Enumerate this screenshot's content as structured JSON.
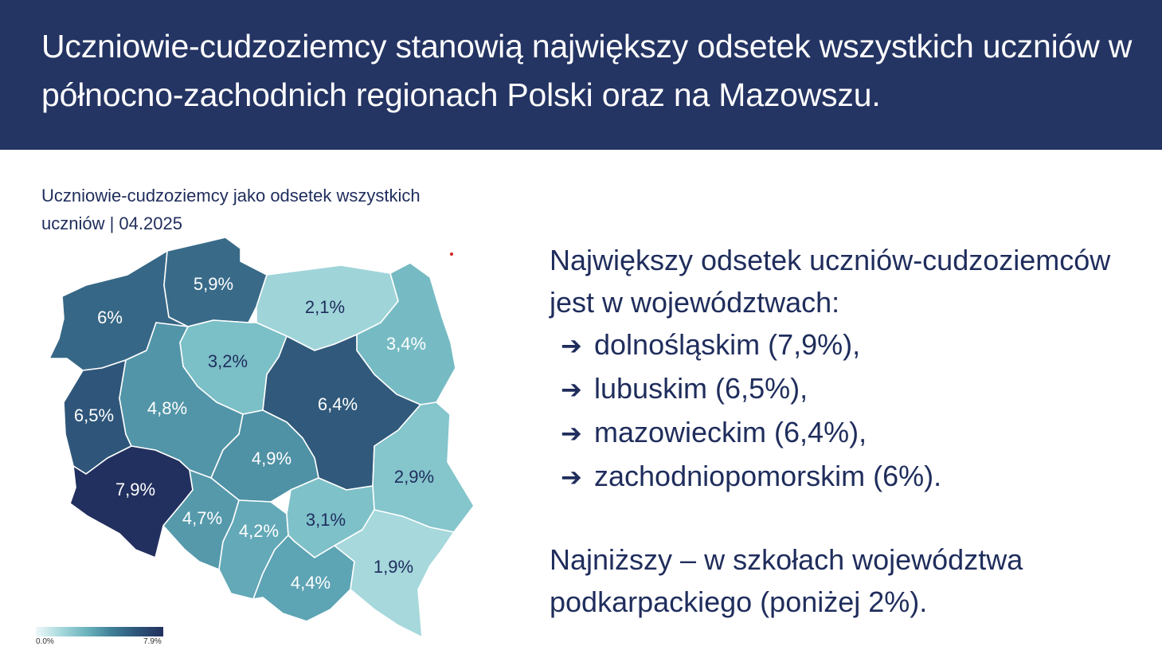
{
  "header": {
    "title": "Uczniowie-cudzoziemcy stanowią największy odsetek wszystkich uczniów w północno-zachodnich regionach Polski oraz na Mazowszu."
  },
  "map": {
    "title": "Uczniowie-cudzoziemcy jako odsetek wszystkich uczniów | 04.2025",
    "regions": [
      {
        "id": "zachodniopomorskie",
        "label": "6%",
        "value": 6.0
      },
      {
        "id": "pomorskie",
        "label": "5,9%",
        "value": 5.9
      },
      {
        "id": "warminsko-mazurskie",
        "label": "2,1%",
        "value": 2.1
      },
      {
        "id": "podlaskie",
        "label": "3,4%",
        "value": 3.4
      },
      {
        "id": "kujawsko-pomorskie",
        "label": "3,2%",
        "value": 3.2
      },
      {
        "id": "lubuskie",
        "label": "6,5%",
        "value": 6.5
      },
      {
        "id": "wielkopolskie",
        "label": "4,8%",
        "value": 4.8
      },
      {
        "id": "mazowieckie",
        "label": "6,4%",
        "value": 6.4
      },
      {
        "id": "lodzkie",
        "label": "4,9%",
        "value": 4.9
      },
      {
        "id": "lubelskie",
        "label": "2,9%",
        "value": 2.9
      },
      {
        "id": "dolnoslaskie",
        "label": "7,9%",
        "value": 7.9
      },
      {
        "id": "opolskie",
        "label": "4,7%",
        "value": 4.7
      },
      {
        "id": "slaskie",
        "label": "4,2%",
        "value": 4.2
      },
      {
        "id": "swietokrzyskie",
        "label": "3,1%",
        "value": 3.1
      },
      {
        "id": "malopolskie",
        "label": "4,4%",
        "value": 4.4
      },
      {
        "id": "podkarpackie",
        "label": "1,9%",
        "value": 1.9
      }
    ],
    "legend": {
      "min_label": "0.0%",
      "max_label": "7.9%",
      "colors": [
        "#eef8f9",
        "#a6d8dc",
        "#6bb3bd",
        "#3f7e97",
        "#2d5478",
        "#22305f"
      ]
    }
  },
  "summary": {
    "intro": "Największy odsetek uczniów-cudzoziemców jest w województwach:",
    "bullets": [
      "dolnośląskim (7,9%),",
      "lubuskim (6,5%),",
      "mazowieckim (6,4%),",
      "zachodniopomorskim (6%)."
    ],
    "arrow_icon": "right-arrow-icon",
    "lowest": "Najniższy – w szkołach województwa podkarpackiego (poniżej 2%)."
  },
  "colors": {
    "header_bg": "#243463",
    "text": "#1f2d5c"
  }
}
